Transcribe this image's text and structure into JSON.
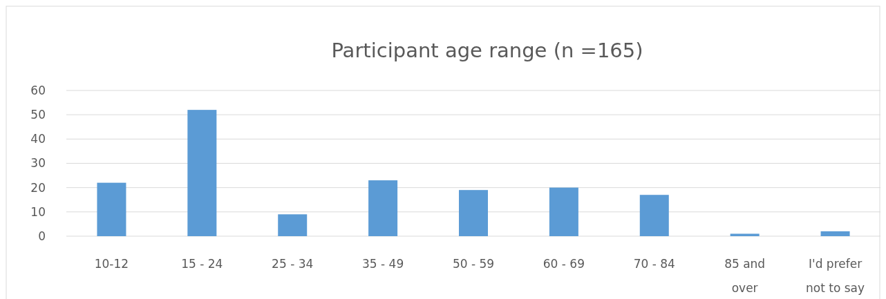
{
  "chart_data": {
    "type": "bar",
    "title": "Participant age range (n =165)",
    "categories": [
      "10-12",
      "15 - 24",
      "25 - 34",
      "35 - 49",
      "50 - 59",
      "60 - 69",
      "70 - 84",
      "85 and over",
      "I'd prefer not to say"
    ],
    "values": [
      22,
      52,
      9,
      23,
      19,
      20,
      17,
      1,
      2
    ],
    "color": "#5b9bd5",
    "ylim": [
      0,
      60
    ],
    "yticks": [
      0,
      10,
      20,
      30,
      40,
      50,
      60
    ],
    "grid": "y"
  }
}
